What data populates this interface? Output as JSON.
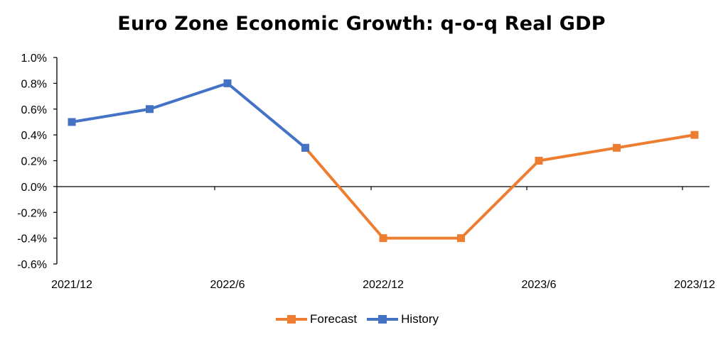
{
  "chart_data": {
    "type": "line",
    "title": "Euro Zone Economic Growth: q-o-q Real GDP",
    "xlabel": "",
    "ylabel": "",
    "categories": [
      "2021/12",
      "2022/3",
      "2022/6",
      "2022/9",
      "2022/12",
      "2023/3",
      "2023/6",
      "2023/9",
      "2023/12"
    ],
    "x_tick_labels": [
      "2021/12",
      "2022/6",
      "2022/12",
      "2023/6",
      "2023/12"
    ],
    "y_tick_labels": [
      "1.0%",
      "0.8%",
      "0.6%",
      "0.4%",
      "0.2%",
      "0.0%",
      "-0.2%",
      "-0.4%",
      "-0.6%"
    ],
    "ylim": [
      -0.6,
      1.0
    ],
    "y_unit": "%",
    "grid": false,
    "legend_position": "bottom",
    "series": [
      {
        "name": "Forecast",
        "color": "#ED7D31",
        "values": [
          null,
          null,
          null,
          0.3,
          -0.4,
          -0.4,
          0.2,
          0.3,
          0.4
        ]
      },
      {
        "name": "History",
        "color": "#4472C4",
        "values": [
          0.5,
          0.6,
          0.8,
          0.3,
          null,
          null,
          null,
          null,
          null
        ]
      }
    ]
  }
}
